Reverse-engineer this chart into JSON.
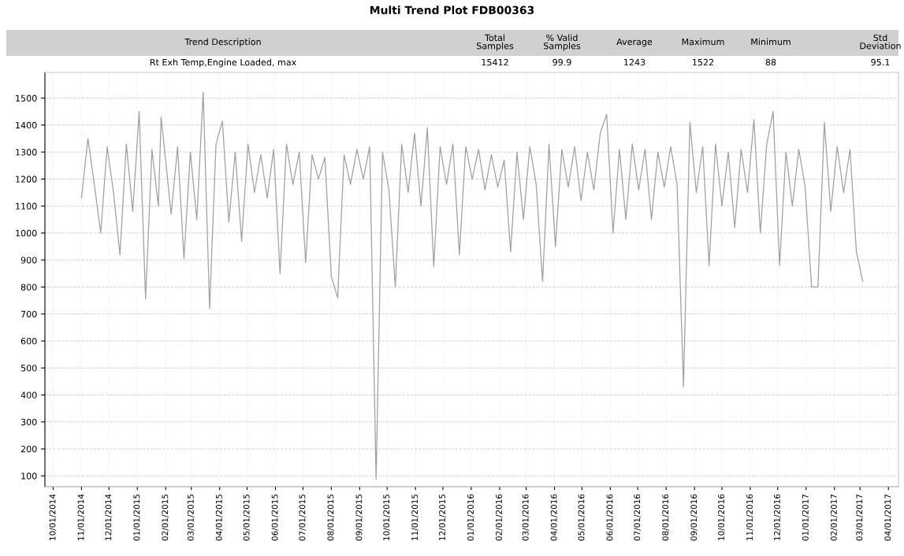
{
  "chart_data": {
    "type": "line",
    "title": "Multi Trend Plot FDB00363",
    "annotations": [
      "Trend Description",
      "Total\nSamples",
      "% Valid\nSamples",
      "Average",
      "Maximum",
      "Minimum",
      "Std\nDeviation",
      "Rt Exh Temp,Engine Loaded, max",
      "15412",
      "99.9",
      "1243",
      "1522",
      "88",
      "95.1"
    ],
    "x": [
      "2014-11-01",
      "2014-11-08",
      "2014-11-15",
      "2014-11-22",
      "2014-11-29",
      "2014-12-06",
      "2014-12-13",
      "2014-12-20",
      "2014-12-27",
      "2015-01-03",
      "2015-01-10",
      "2015-01-17",
      "2015-01-24",
      "2015-01-27",
      "2015-02-07",
      "2015-02-14",
      "2015-02-21",
      "2015-02-28",
      "2015-03-07",
      "2015-03-14",
      "2015-03-21",
      "2015-03-28",
      "2015-04-04",
      "2015-04-11",
      "2015-04-18",
      "2015-04-25",
      "2015-05-02",
      "2015-05-09",
      "2015-05-16",
      "2015-05-23",
      "2015-05-30",
      "2015-06-06",
      "2015-06-13",
      "2015-06-20",
      "2015-06-27",
      "2015-07-04",
      "2015-07-11",
      "2015-07-18",
      "2015-07-25",
      "2015-08-01",
      "2015-08-08",
      "2015-08-15",
      "2015-08-22",
      "2015-08-29",
      "2015-09-05",
      "2015-09-12",
      "2015-09-19",
      "2015-09-26",
      "2015-10-03",
      "2015-10-10",
      "2015-10-17",
      "2015-10-24",
      "2015-10-31",
      "2015-11-07",
      "2015-11-14",
      "2015-11-21",
      "2015-11-28",
      "2015-12-05",
      "2015-12-12",
      "2015-12-19",
      "2015-12-26",
      "2016-01-02",
      "2016-01-09",
      "2016-01-16",
      "2016-01-23",
      "2016-01-30",
      "2016-02-06",
      "2016-02-13",
      "2016-02-20",
      "2016-02-27",
      "2016-03-05",
      "2016-03-12",
      "2016-03-19",
      "2016-03-26",
      "2016-04-02",
      "2016-04-09",
      "2016-04-16",
      "2016-04-23",
      "2016-04-30",
      "2016-05-07",
      "2016-05-14",
      "2016-05-21",
      "2016-05-28",
      "2016-06-04",
      "2016-06-11",
      "2016-06-18",
      "2016-06-25",
      "2016-07-02",
      "2016-07-09",
      "2016-07-16",
      "2016-07-23",
      "2016-07-30",
      "2016-08-06",
      "2016-08-13",
      "2016-08-20",
      "2016-08-27",
      "2016-09-03",
      "2016-09-10",
      "2016-09-17",
      "2016-09-24",
      "2016-10-01",
      "2016-10-08",
      "2016-10-15",
      "2016-10-22",
      "2016-10-29",
      "2016-11-05",
      "2016-11-12",
      "2016-11-19",
      "2016-11-26",
      "2016-12-03",
      "2016-12-10",
      "2016-12-17",
      "2016-12-24",
      "2016-12-31",
      "2017-01-07",
      "2017-01-14",
      "2017-01-21",
      "2017-01-28",
      "2017-02-04",
      "2017-02-11",
      "2017-02-18",
      "2017-02-25",
      "2017-03-04"
    ],
    "series": [
      {
        "color": "#a0a0a0",
        "values": [
          1130,
          1350,
          1180,
          1000,
          1320,
          1150,
          920,
          1330,
          1080,
          1450,
          757,
          1310,
          1100,
          1430,
          1070,
          1320,
          905,
          1300,
          1050,
          1522,
          720,
          1330,
          1415,
          1040,
          1300,
          970,
          1330,
          1150,
          1290,
          1130,
          1310,
          850,
          1330,
          1180,
          1300,
          890,
          1290,
          1200,
          1280,
          840,
          760,
          1290,
          1180,
          1310,
          1200,
          1320,
          88,
          1300,
          1160,
          800,
          1330,
          1150,
          1370,
          1100,
          1390,
          875,
          1320,
          1180,
          1330,
          920,
          1320,
          1200,
          1310,
          1160,
          1290,
          1170,
          1270,
          930,
          1300,
          1050,
          1320,
          1180,
          820,
          1330,
          950,
          1310,
          1170,
          1320,
          1120,
          1300,
          1160,
          1370,
          1440,
          1000,
          1310,
          1050,
          1330,
          1160,
          1310,
          1050,
          1300,
          1170,
          1320,
          1180,
          430,
          1410,
          1150,
          1320,
          880,
          1330,
          1100,
          1300,
          1020,
          1310,
          1150,
          1420,
          1000,
          1330,
          1450,
          880,
          1300,
          1100,
          1310,
          1170,
          800,
          800,
          1410,
          1080,
          1320,
          1150,
          1310,
          930,
          820
        ]
      }
    ],
    "xlim": [
      "2014-09-22",
      "2017-04-12"
    ],
    "xticks": [
      {
        "value": "2014-10-01",
        "label": "10/01/2014"
      },
      {
        "value": "2014-11-01",
        "label": "11/01/2014"
      },
      {
        "value": "2014-12-01",
        "label": "12/01/2014"
      },
      {
        "value": "2015-01-01",
        "label": "01/01/2015"
      },
      {
        "value": "2015-02-01",
        "label": "02/01/2015"
      },
      {
        "value": "2015-03-01",
        "label": "03/01/2015"
      },
      {
        "value": "2015-04-01",
        "label": "04/01/2015"
      },
      {
        "value": "2015-05-01",
        "label": "05/01/2015"
      },
      {
        "value": "2015-06-01",
        "label": "06/01/2015"
      },
      {
        "value": "2015-07-01",
        "label": "07/01/2015"
      },
      {
        "value": "2015-08-01",
        "label": "08/01/2015"
      },
      {
        "value": "2015-09-01",
        "label": "09/01/2015"
      },
      {
        "value": "2015-10-01",
        "label": "10/01/2015"
      },
      {
        "value": "2015-11-01",
        "label": "11/01/2015"
      },
      {
        "value": "2015-12-01",
        "label": "12/01/2015"
      },
      {
        "value": "2016-01-01",
        "label": "01/01/2016"
      },
      {
        "value": "2016-02-01",
        "label": "02/01/2016"
      },
      {
        "value": "2016-03-01",
        "label": "03/01/2016"
      },
      {
        "value": "2016-04-01",
        "label": "04/01/2016"
      },
      {
        "value": "2016-05-01",
        "label": "05/01/2016"
      },
      {
        "value": "2016-06-01",
        "label": "06/01/2016"
      },
      {
        "value": "2016-07-01",
        "label": "07/01/2016"
      },
      {
        "value": "2016-08-01",
        "label": "08/01/2016"
      },
      {
        "value": "2016-09-01",
        "label": "09/01/2016"
      },
      {
        "value": "2016-10-01",
        "label": "10/01/2016"
      },
      {
        "value": "2016-11-01",
        "label": "11/01/2016"
      },
      {
        "value": "2016-12-01",
        "label": "12/01/2016"
      },
      {
        "value": "2017-01-01",
        "label": "01/01/2017"
      },
      {
        "value": "2017-02-01",
        "label": "02/01/2017"
      },
      {
        "value": "2017-03-01",
        "label": "03/01/2017"
      },
      {
        "value": "2017-04-01",
        "label": "04/01/2017"
      }
    ],
    "ylim": [
      60,
      1595
    ],
    "yticks": [
      100,
      200,
      300,
      400,
      500,
      600,
      700,
      800,
      900,
      1000,
      1100,
      1200,
      1300,
      1400,
      1500
    ],
    "grid": true,
    "legend": false,
    "marker": "none",
    "line_style": "solid"
  }
}
